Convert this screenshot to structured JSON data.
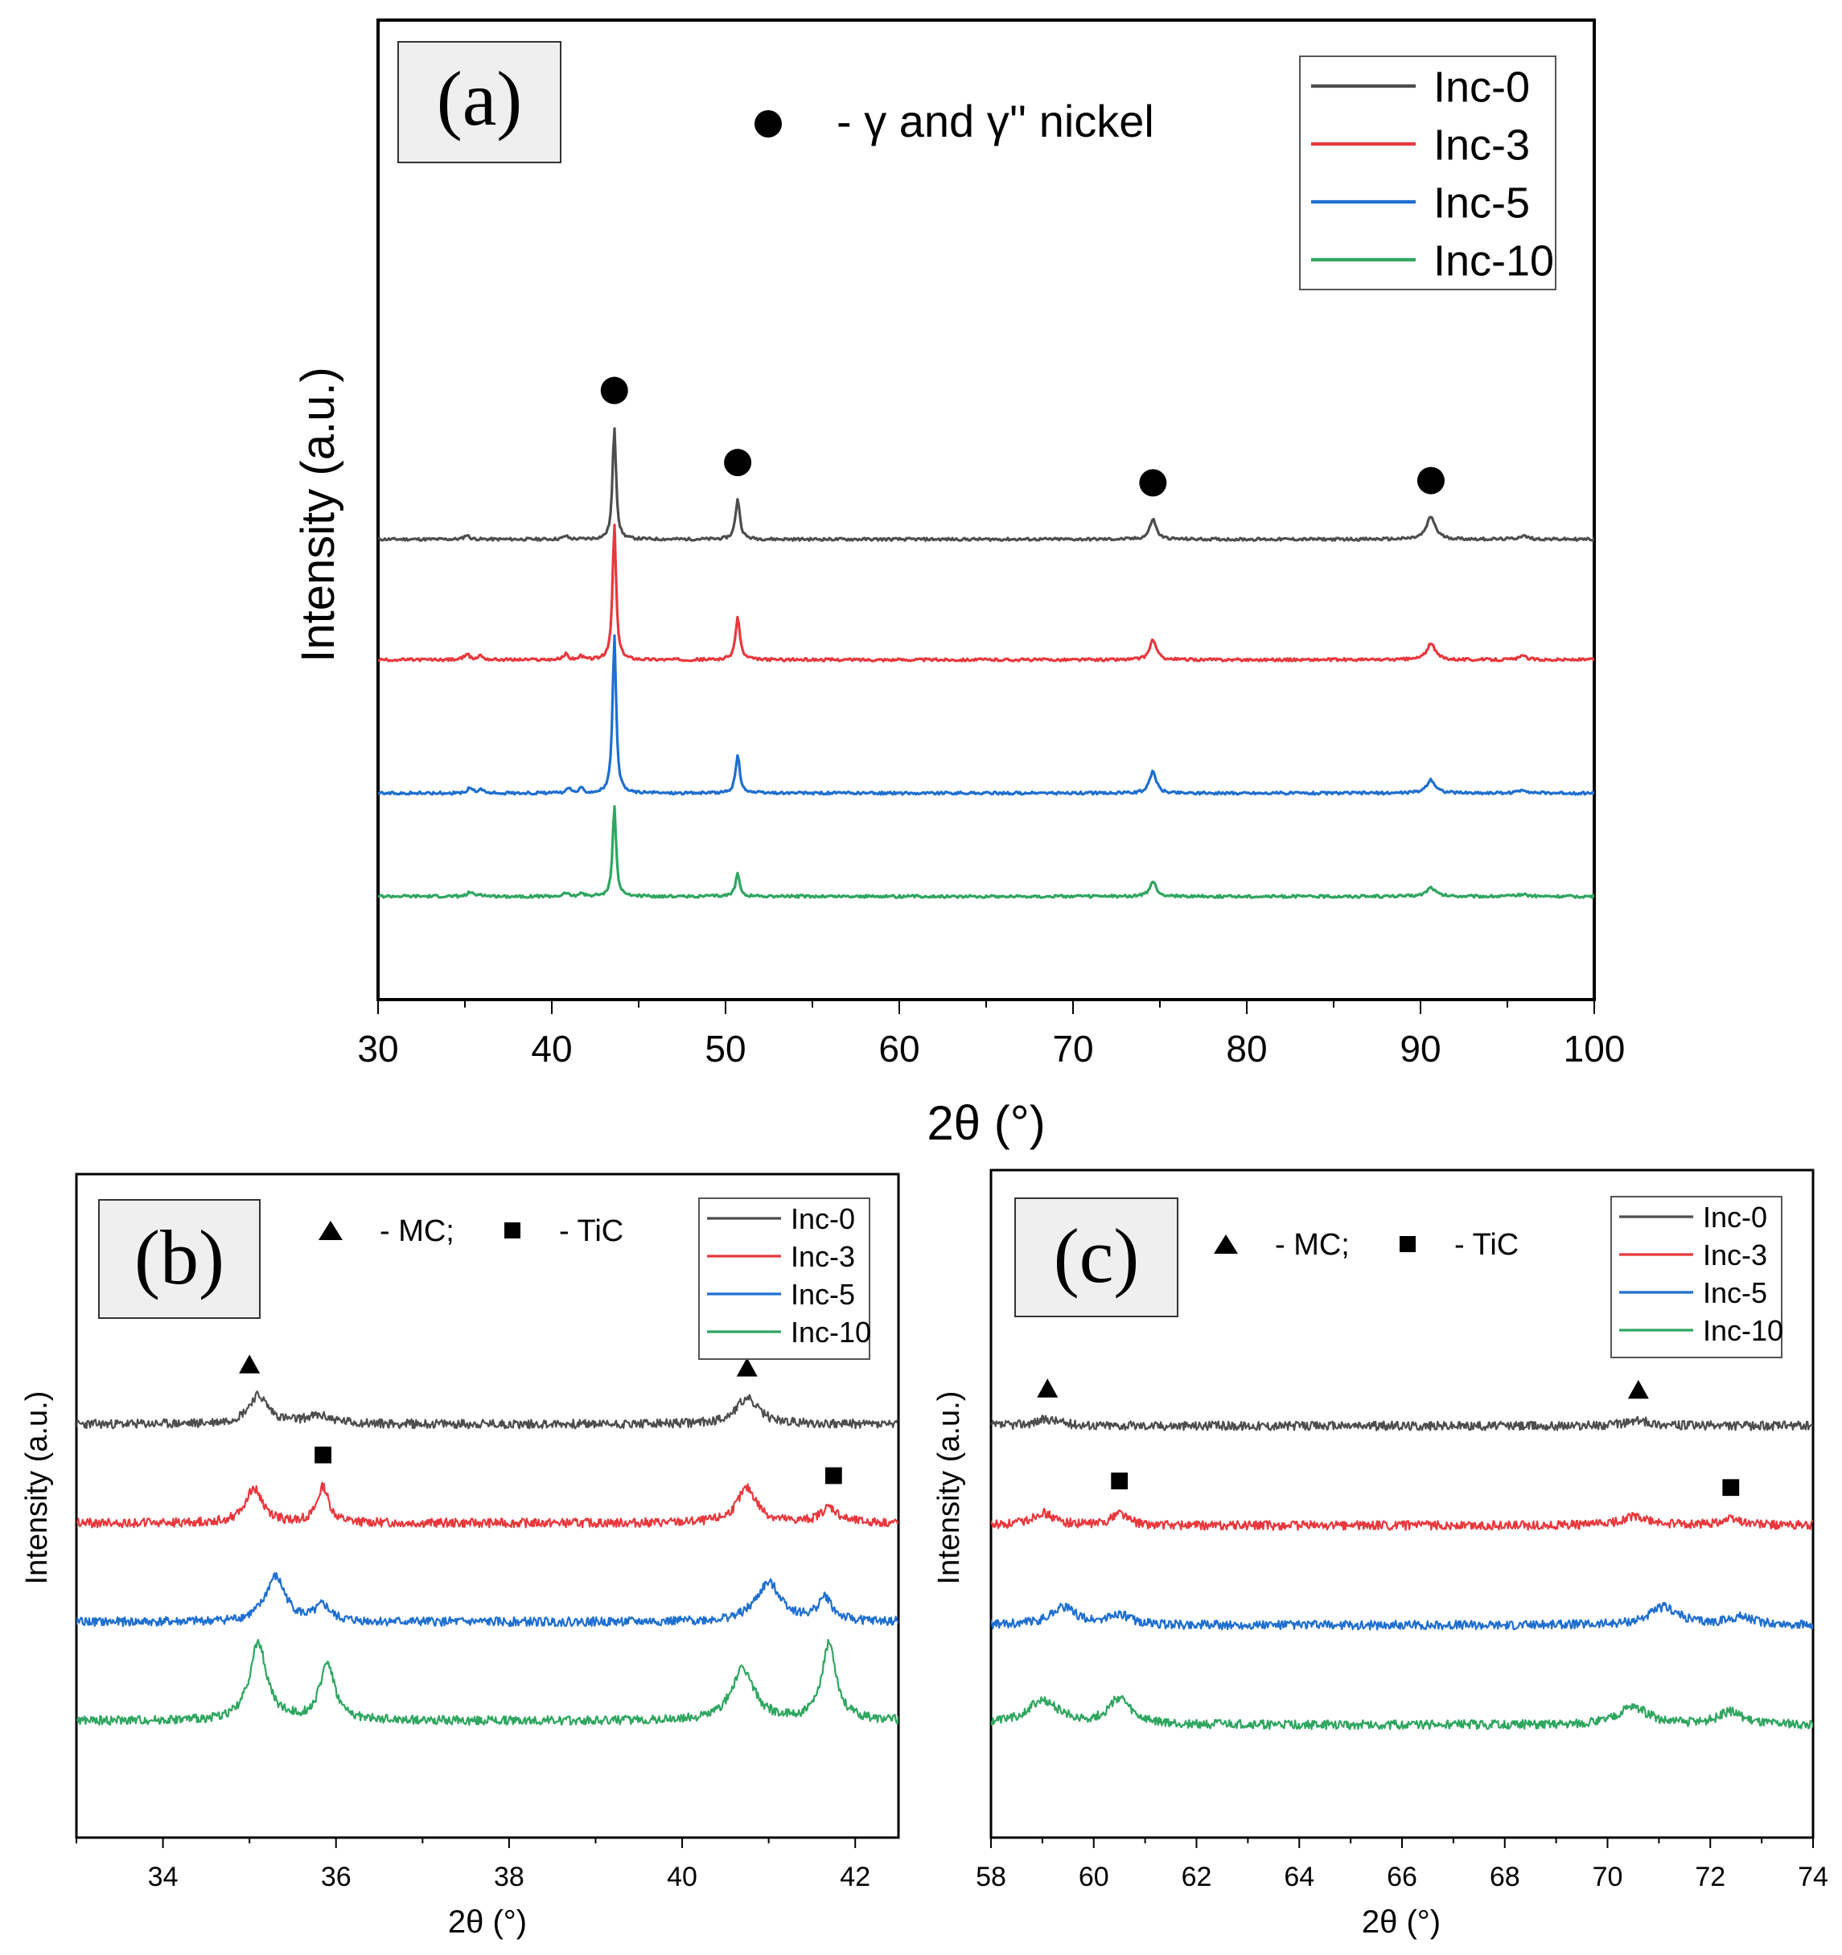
{
  "chart_data": [
    {
      "id": "a",
      "type": "line",
      "panel_label": "(a)",
      "xlabel": "2θ (°)",
      "ylabel": "Intensity (a.u.)",
      "xlim": [
        30,
        100
      ],
      "xticks": [
        30,
        40,
        50,
        60,
        70,
        80,
        90,
        100
      ],
      "y_ticks_shown": false,
      "annotation": "- γ and γ'' nickel",
      "annotation_marker": "circle",
      "legend_position": "top-right",
      "series": [
        {
          "name": "Inc-0",
          "color": "#4d4d4d",
          "offset": 4.2,
          "peaks": [
            [
              35.1,
              0.04,
              0.15
            ],
            [
              40.8,
              0.03,
              0.15
            ],
            [
              43.6,
              1.0,
              0.12
            ],
            [
              50.7,
              0.36,
              0.15
            ],
            [
              74.6,
              0.18,
              0.22
            ],
            [
              90.6,
              0.2,
              0.3
            ],
            [
              95.9,
              0.03,
              0.3
            ]
          ]
        },
        {
          "name": "Inc-3",
          "color": "#e8383d",
          "offset": 2.8,
          "peaks": [
            [
              35.1,
              0.06,
              0.15
            ],
            [
              35.9,
              0.04,
              0.15
            ],
            [
              40.8,
              0.05,
              0.15
            ],
            [
              41.7,
              0.03,
              0.15
            ],
            [
              43.6,
              1.2,
              0.12
            ],
            [
              50.7,
              0.38,
              0.15
            ],
            [
              74.6,
              0.18,
              0.22
            ],
            [
              90.6,
              0.14,
              0.3
            ],
            [
              95.9,
              0.03,
              0.3
            ]
          ]
        },
        {
          "name": "Inc-5",
          "color": "#1f6fd0",
          "offset": 1.25,
          "peaks": [
            [
              35.3,
              0.05,
              0.15
            ],
            [
              35.9,
              0.04,
              0.15
            ],
            [
              41.0,
              0.04,
              0.15
            ],
            [
              41.7,
              0.04,
              0.15
            ],
            [
              43.6,
              1.4,
              0.12
            ],
            [
              50.7,
              0.33,
              0.15
            ],
            [
              74.6,
              0.2,
              0.22
            ],
            [
              90.6,
              0.12,
              0.3
            ],
            [
              95.9,
              0.03,
              0.3
            ]
          ]
        },
        {
          "name": "Inc-10",
          "color": "#2fa660",
          "offset": 0.05,
          "peaks": [
            [
              35.3,
              0.04,
              0.15
            ],
            [
              35.9,
              0.02,
              0.15
            ],
            [
              40.8,
              0.03,
              0.15
            ],
            [
              41.7,
              0.03,
              0.15
            ],
            [
              43.6,
              0.8,
              0.12
            ],
            [
              50.7,
              0.2,
              0.15
            ],
            [
              74.6,
              0.13,
              0.22
            ],
            [
              90.6,
              0.08,
              0.3
            ],
            [
              95.9,
              0.02,
              0.3
            ]
          ]
        }
      ],
      "markers": [
        {
          "shape": "circle",
          "x": 43.6,
          "series": "Inc-0"
        },
        {
          "shape": "circle",
          "x": 50.7,
          "series": "Inc-0"
        },
        {
          "shape": "circle",
          "x": 74.6,
          "series": "Inc-0"
        },
        {
          "shape": "circle",
          "x": 90.6,
          "series": "Inc-0"
        }
      ]
    },
    {
      "id": "b",
      "type": "line",
      "panel_label": "(b)",
      "xlabel": "2θ (°)",
      "ylabel": "Intensity (a.u.)",
      "xlim": [
        33,
        42.5
      ],
      "xticks": [
        34,
        36,
        38,
        40,
        42
      ],
      "y_ticks_shown": false,
      "annotation_mc": "- MC;",
      "annotation_tic": "- TiC",
      "legend_position": "top-right",
      "series": [
        {
          "name": "Inc-0",
          "color": "#4d4d4d",
          "offset": 3.0,
          "peaks": [
            [
              35.1,
              0.22,
              0.14
            ],
            [
              35.8,
              0.06,
              0.2
            ],
            [
              40.75,
              0.2,
              0.16
            ]
          ]
        },
        {
          "name": "Inc-3",
          "color": "#e8383d",
          "offset": 2.0,
          "peaks": [
            [
              35.05,
              0.27,
              0.12
            ],
            [
              35.85,
              0.28,
              0.08
            ],
            [
              40.75,
              0.27,
              0.14
            ],
            [
              41.7,
              0.12,
              0.12
            ]
          ]
        },
        {
          "name": "Inc-5",
          "color": "#1f6fd0",
          "offset": 1.0,
          "peaks": [
            [
              35.3,
              0.35,
              0.14
            ],
            [
              35.85,
              0.12,
              0.1
            ],
            [
              41.0,
              0.3,
              0.18
            ],
            [
              41.65,
              0.18,
              0.1
            ]
          ]
        },
        {
          "name": "Inc-10",
          "color": "#2fa660",
          "offset": 0.0,
          "peaks": [
            [
              35.1,
              0.6,
              0.12
            ],
            [
              35.9,
              0.45,
              0.1
            ],
            [
              40.7,
              0.4,
              0.16
            ],
            [
              41.7,
              0.6,
              0.1
            ]
          ]
        }
      ],
      "markers": [
        {
          "shape": "triangle",
          "x": 35.0,
          "series": "Inc-0"
        },
        {
          "shape": "triangle",
          "x": 40.75,
          "series": "Inc-0"
        },
        {
          "shape": "square",
          "x": 35.85,
          "series": "Inc-3"
        },
        {
          "shape": "square",
          "x": 41.75,
          "series": "Inc-3"
        }
      ]
    },
    {
      "id": "c",
      "type": "line",
      "panel_label": "(c)",
      "xlabel": "2θ (°)",
      "ylabel": "Intensity (a.u.)",
      "xlim": [
        58,
        74
      ],
      "xticks": [
        58,
        60,
        62,
        64,
        66,
        68,
        70,
        72,
        74
      ],
      "y_ticks_shown": false,
      "annotation_mc": "- MC;",
      "annotation_tic": "- TiC",
      "legend_position": "top-right",
      "series": [
        {
          "name": "Inc-0",
          "color": "#4d4d4d",
          "offset": 3.0,
          "peaks": [
            [
              59.1,
              0.05,
              0.3
            ],
            [
              70.6,
              0.04,
              0.3
            ]
          ]
        },
        {
          "name": "Inc-3",
          "color": "#e8383d",
          "offset": 2.0,
          "peaks": [
            [
              59.0,
              0.1,
              0.25
            ],
            [
              60.5,
              0.1,
              0.18
            ],
            [
              70.5,
              0.07,
              0.3
            ],
            [
              72.4,
              0.05,
              0.3
            ]
          ]
        },
        {
          "name": "Inc-5",
          "color": "#1f6fd0",
          "offset": 1.0,
          "peaks": [
            [
              59.4,
              0.14,
              0.3
            ],
            [
              60.5,
              0.08,
              0.25
            ],
            [
              71.1,
              0.14,
              0.35
            ],
            [
              72.6,
              0.06,
              0.3
            ]
          ]
        },
        {
          "name": "Inc-10",
          "color": "#2fa660",
          "offset": 0.0,
          "peaks": [
            [
              59.0,
              0.18,
              0.4
            ],
            [
              60.5,
              0.2,
              0.25
            ],
            [
              70.5,
              0.14,
              0.35
            ],
            [
              72.4,
              0.1,
              0.3
            ]
          ]
        }
      ],
      "markers": [
        {
          "shape": "triangle",
          "x": 59.1,
          "series": "Inc-0"
        },
        {
          "shape": "triangle",
          "x": 70.6,
          "series": "Inc-0"
        },
        {
          "shape": "square",
          "x": 60.5,
          "series": "Inc-3"
        },
        {
          "shape": "square",
          "x": 72.4,
          "series": "Inc-3"
        }
      ]
    }
  ]
}
